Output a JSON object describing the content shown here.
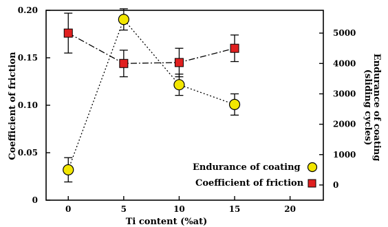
{
  "chart_data": {
    "type": "line",
    "title": "",
    "xlabel": "Ti content (%at)",
    "ylabel_left": "Coefficient of friction",
    "ylabel_right_line1": "Endurance of coating",
    "ylabel_right_line2": "(sliding cycles)",
    "xlim": [
      -2,
      23
    ],
    "xticks": [
      0,
      5,
      10,
      15,
      20
    ],
    "xtick_labels": [
      "0",
      "5",
      "10",
      "15",
      "20"
    ],
    "ylim_left": [
      0,
      0.2
    ],
    "yticks_left": [
      0,
      0.05,
      0.1,
      0.15,
      0.2
    ],
    "ytick_labels_left": [
      "0",
      "0.05",
      "0.10",
      "0.15",
      "0.20"
    ],
    "ylim_right": [
      -500,
      5750
    ],
    "yticks_right": [
      0,
      1000,
      2000,
      3000,
      4000,
      5000
    ],
    "ytick_labels_right": [
      "0",
      "1000",
      "2000",
      "3000",
      "4000",
      "5000"
    ],
    "grid": false,
    "legend_position": "bottom-right",
    "series": [
      {
        "name": "Endurance of coating",
        "axis": "right",
        "marker": "circle",
        "line_style": "dotted",
        "color": "#f2e600",
        "x": [
          0,
          5,
          10,
          15
        ],
        "y": [
          500,
          5450,
          3300,
          2650
        ],
        "err": [
          400,
          350,
          350,
          350
        ]
      },
      {
        "name": "Coefficient of friction",
        "axis": "left",
        "marker": "square",
        "line_style": "dash-dot",
        "color": "#e02020",
        "x": [
          0,
          5,
          10,
          15
        ],
        "y": [
          0.176,
          0.144,
          0.145,
          0.16
        ],
        "err": [
          0.021,
          0.014,
          0.015,
          0.014
        ]
      }
    ]
  }
}
